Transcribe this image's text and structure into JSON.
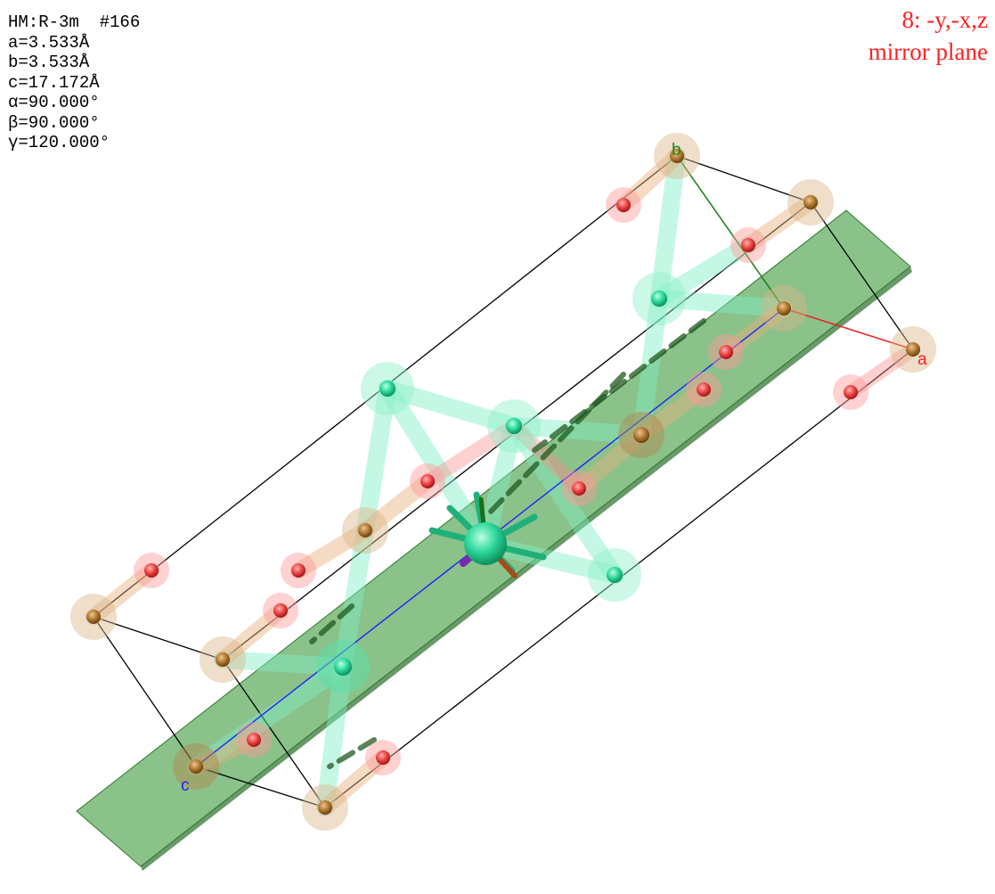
{
  "cell_info": {
    "space_group": "HM:R-3m  #166",
    "a": "a=3.533Å",
    "b": "b=3.533Å",
    "c": "c=17.172Å",
    "alpha": "α=90.000°",
    "beta": "β=90.000°",
    "gamma": "γ=120.000°"
  },
  "symmetry_operation": {
    "operator": "8: -y,-x,z",
    "description": "mirror plane"
  },
  "axes": {
    "a_label": "a",
    "b_label": "b",
    "c_label": "c",
    "a_color": "#ff2020",
    "b_color": "#1a8a1a",
    "c_color": "#2020ff"
  },
  "colors": {
    "mirror_plane": "#3c9a3c",
    "oxygen_atom": "#e63b3b",
    "metal_atom_brown": "#a8722c",
    "metal_atom_green": "#25d08a",
    "cell_edges": "#000000"
  },
  "atom_types": [
    "oxygen-atom",
    "brown-atom",
    "green-atom"
  ]
}
